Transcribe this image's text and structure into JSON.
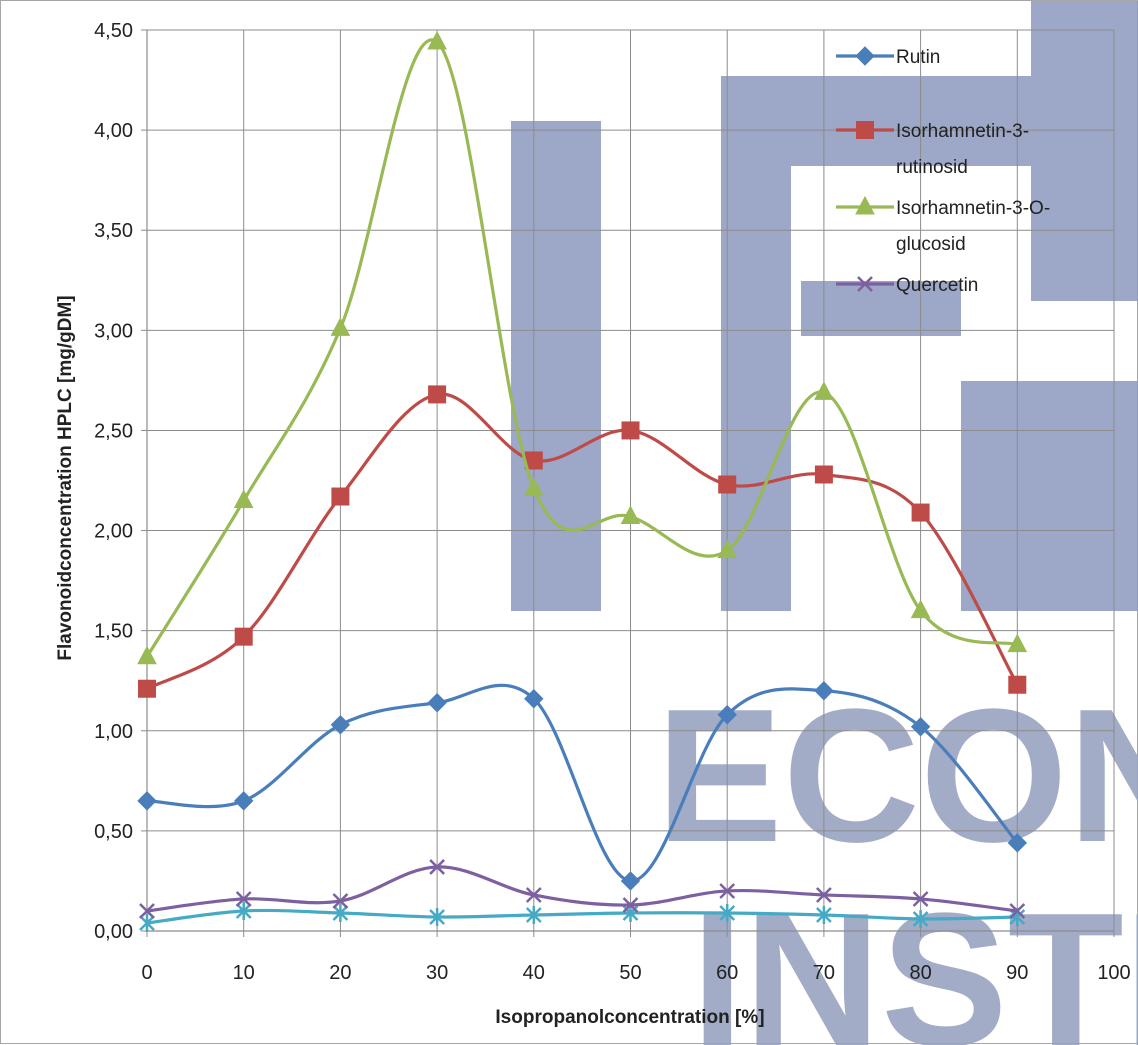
{
  "chart_data": {
    "type": "line",
    "title": "",
    "xlabel": "Isopropanolconcentration  [%]",
    "ylabel": "Flavonoidconcentration HPLC [mg/gDM]",
    "xlim": [
      0,
      100
    ],
    "ylim": [
      0,
      4.5
    ],
    "x_ticks": [
      "0",
      "10",
      "20",
      "30",
      "40",
      "50",
      "60",
      "70",
      "80",
      "90",
      "100"
    ],
    "y_ticks": [
      "0,00",
      "0,50",
      "1,00",
      "1,50",
      "2,00",
      "2,50",
      "3,00",
      "3,50",
      "4,00",
      "4,50"
    ],
    "grid": true,
    "legend_position": "top-right",
    "x": [
      0,
      10,
      20,
      30,
      40,
      50,
      60,
      70,
      80,
      90
    ],
    "series": [
      {
        "name": "Rutin",
        "legend_lines": [
          "Rutin"
        ],
        "marker": "diamond",
        "color": "#4a7ebb",
        "values": [
          0.65,
          0.65,
          1.03,
          1.14,
          1.16,
          0.25,
          1.08,
          1.2,
          1.02,
          0.44
        ]
      },
      {
        "name": "Isorhamnetin-3-rutinosid",
        "legend_lines": [
          "Isorhamnetin-3-",
          "rutinosid"
        ],
        "marker": "square",
        "color": "#be4b48",
        "values": [
          1.21,
          1.47,
          2.17,
          2.68,
          2.35,
          2.5,
          2.23,
          2.28,
          2.09,
          1.23
        ]
      },
      {
        "name": "Isorhamnetin-3-O-glucosid",
        "legend_lines": [
          "Isorhamnetin-3-O-",
          "glucosid"
        ],
        "marker": "triangle",
        "color": "#98b954",
        "values": [
          1.37,
          2.15,
          3.01,
          4.44,
          2.21,
          2.07,
          1.9,
          2.69,
          1.6,
          1.43
        ]
      },
      {
        "name": "Quercetin",
        "legend_lines": [
          "Quercetin"
        ],
        "marker": "x",
        "color": "#7d60a0",
        "values": [
          0.1,
          0.16,
          0.15,
          0.32,
          0.18,
          0.13,
          0.2,
          0.18,
          0.16,
          0.1
        ]
      },
      {
        "name": "",
        "legend_lines": [],
        "marker": "star",
        "color": "#46aac5",
        "values": [
          0.04,
          0.1,
          0.09,
          0.07,
          0.08,
          0.09,
          0.09,
          0.08,
          0.06,
          0.07
        ]
      }
    ]
  },
  "watermark": {
    "text_line1": "ECON",
    "text_line2": "INSTI",
    "color": "#9aa4c2"
  }
}
